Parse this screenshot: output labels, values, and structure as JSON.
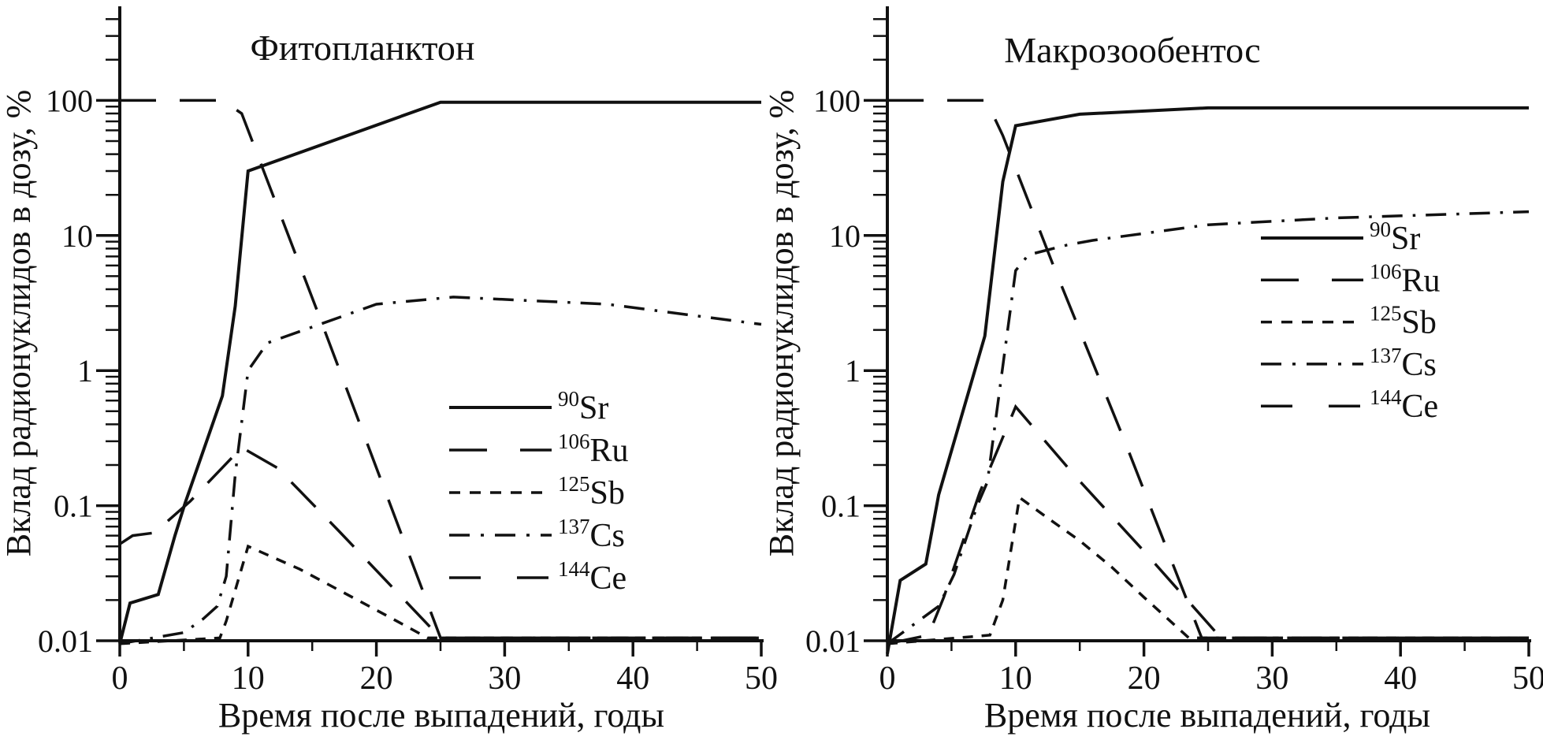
{
  "figure": {
    "background": "#ffffff",
    "ink_color": "#111111",
    "description": "Two log-scale line charts of radionuclide dose contribution versus time after fallout"
  },
  "chart_data": [
    {
      "type": "line",
      "title": "Фитопланктон",
      "xlabel": "Время после выпадений, годы",
      "ylabel": "Вклад радионуклидов в дозу, %",
      "y_scale": "log",
      "x_range": [
        0,
        50
      ],
      "y_range": [
        0.01,
        100
      ],
      "x_ticks": [
        0,
        10,
        20,
        30,
        40,
        50
      ],
      "x_minor_ticks": [
        5,
        15,
        25,
        35,
        45
      ],
      "y_ticks": [
        0.01,
        0.1,
        1,
        10,
        100
      ],
      "y_tick_labels": [
        "0.01",
        "0.1",
        "1",
        "10",
        "100"
      ],
      "grid": false,
      "legend_position": "inside-right-lower",
      "series": [
        {
          "isotope_mass": "90",
          "isotope_symbol": "Sr",
          "line_style": "solid",
          "points": [
            [
              0,
              0.0095
            ],
            [
              0.8,
              0.019
            ],
            [
              3,
              0.022
            ],
            [
              4.3,
              0.06
            ],
            [
              5.1,
              0.105
            ],
            [
              8,
              0.65
            ],
            [
              9,
              3
            ],
            [
              10,
              30
            ],
            [
              25,
              97
            ],
            [
              50,
              97
            ]
          ]
        },
        {
          "isotope_mass": "106",
          "isotope_symbol": "Ru",
          "line_style": "long-dash",
          "points": [
            [
              0,
              0.052
            ],
            [
              1,
              0.06
            ],
            [
              2.7,
              0.063
            ],
            [
              5.5,
              0.108
            ],
            [
              9.5,
              0.27
            ],
            [
              12.3,
              0.19
            ],
            [
              17,
              0.066
            ],
            [
              25,
              0.0105
            ],
            [
              50,
              0.0105
            ]
          ]
        },
        {
          "isotope_mass": "125",
          "isotope_symbol": "Sb",
          "line_style": "short-dash",
          "points": [
            [
              0,
              0.0095
            ],
            [
              7.8,
              0.0105
            ],
            [
              8.3,
              0.014
            ],
            [
              10,
              0.05
            ],
            [
              14,
              0.034
            ],
            [
              21,
              0.015
            ],
            [
              24,
              0.0105
            ],
            [
              50,
              0.0105
            ]
          ]
        },
        {
          "isotope_mass": "137",
          "isotope_symbol": "Cs",
          "line_style": "dash-dot",
          "points": [
            [
              0,
              0.0095
            ],
            [
              5,
              0.0115
            ],
            [
              6.5,
              0.0145
            ],
            [
              7.6,
              0.018
            ],
            [
              8.3,
              0.03
            ],
            [
              9,
              0.17
            ],
            [
              10,
              1.0
            ],
            [
              11.5,
              1.6
            ],
            [
              20,
              3.1
            ],
            [
              26,
              3.5
            ],
            [
              38,
              3.1
            ],
            [
              50,
              2.2
            ]
          ]
        },
        {
          "isotope_mass": "144",
          "isotope_symbol": "Ce",
          "line_style": "very-long-dash",
          "points": [
            [
              0,
              100
            ],
            [
              8,
              100
            ],
            [
              9.5,
              80
            ],
            [
              15.5,
              2.6
            ],
            [
              25,
              0.0105
            ],
            [
              50,
              0.0105
            ]
          ]
        }
      ]
    },
    {
      "type": "line",
      "title": "Макрозообентос",
      "xlabel": "Время после выпадений, годы",
      "ylabel": "Вклад радионуклидов в дозу, %",
      "y_scale": "log",
      "x_range": [
        0,
        50
      ],
      "y_range": [
        0.01,
        100
      ],
      "x_ticks": [
        0,
        10,
        20,
        30,
        40,
        50
      ],
      "x_minor_ticks": [
        5,
        15,
        25,
        35,
        45
      ],
      "y_ticks": [
        0.01,
        0.1,
        1,
        10,
        100
      ],
      "y_tick_labels": [
        "0.01",
        "0.1",
        "1",
        "10",
        "100"
      ],
      "grid": false,
      "legend_position": "inside-right-middle",
      "series": [
        {
          "isotope_mass": "90",
          "isotope_symbol": "Sr",
          "line_style": "solid",
          "points": [
            [
              0,
              0.008
            ],
            [
              1,
              0.028
            ],
            [
              3,
              0.037
            ],
            [
              4,
              0.12
            ],
            [
              7.6,
              1.8
            ],
            [
              9,
              25
            ],
            [
              10,
              65
            ],
            [
              15,
              79
            ],
            [
              25,
              88
            ],
            [
              50,
              88
            ]
          ]
        },
        {
          "isotope_mass": "106",
          "isotope_symbol": "Ru",
          "line_style": "long-dash",
          "points": [
            [
              0,
              0.0095
            ],
            [
              3.2,
              0.011
            ],
            [
              4.4,
              0.021
            ],
            [
              7.2,
              0.125
            ],
            [
              10,
              0.54
            ],
            [
              14.6,
              0.167
            ],
            [
              20,
              0.046
            ],
            [
              26,
              0.0105
            ],
            [
              50,
              0.0105
            ]
          ]
        },
        {
          "isotope_mass": "125",
          "isotope_symbol": "Sb",
          "line_style": "short-dash",
          "points": [
            [
              0,
              0.0095
            ],
            [
              8,
              0.011
            ],
            [
              9,
              0.02
            ],
            [
              10.3,
              0.115
            ],
            [
              12.5,
              0.081
            ],
            [
              15,
              0.055
            ],
            [
              17.5,
              0.035
            ],
            [
              20,
              0.021
            ],
            [
              23.5,
              0.0105
            ],
            [
              50,
              0.0105
            ]
          ]
        },
        {
          "isotope_mass": "137",
          "isotope_symbol": "Cs",
          "line_style": "dash-dot",
          "points": [
            [
              0,
              0.0095
            ],
            [
              4,
              0.018
            ],
            [
              5.2,
              0.031
            ],
            [
              7,
              0.1
            ],
            [
              7.8,
              0.15
            ],
            [
              9.2,
              1.5
            ],
            [
              10,
              5.5
            ],
            [
              11,
              7.2
            ],
            [
              14,
              8.5
            ],
            [
              16,
              9.2
            ],
            [
              25,
              12
            ],
            [
              35,
              13.5
            ],
            [
              50,
              15
            ]
          ]
        },
        {
          "isotope_mass": "144",
          "isotope_symbol": "Ce",
          "line_style": "very-long-dash",
          "points": [
            [
              0,
              100
            ],
            [
              7.7,
              100
            ],
            [
              9,
              55
            ],
            [
              13,
              5.8
            ],
            [
              18.5,
              0.3
            ],
            [
              24.5,
              0.0105
            ],
            [
              50,
              0.0105
            ]
          ]
        }
      ]
    }
  ]
}
